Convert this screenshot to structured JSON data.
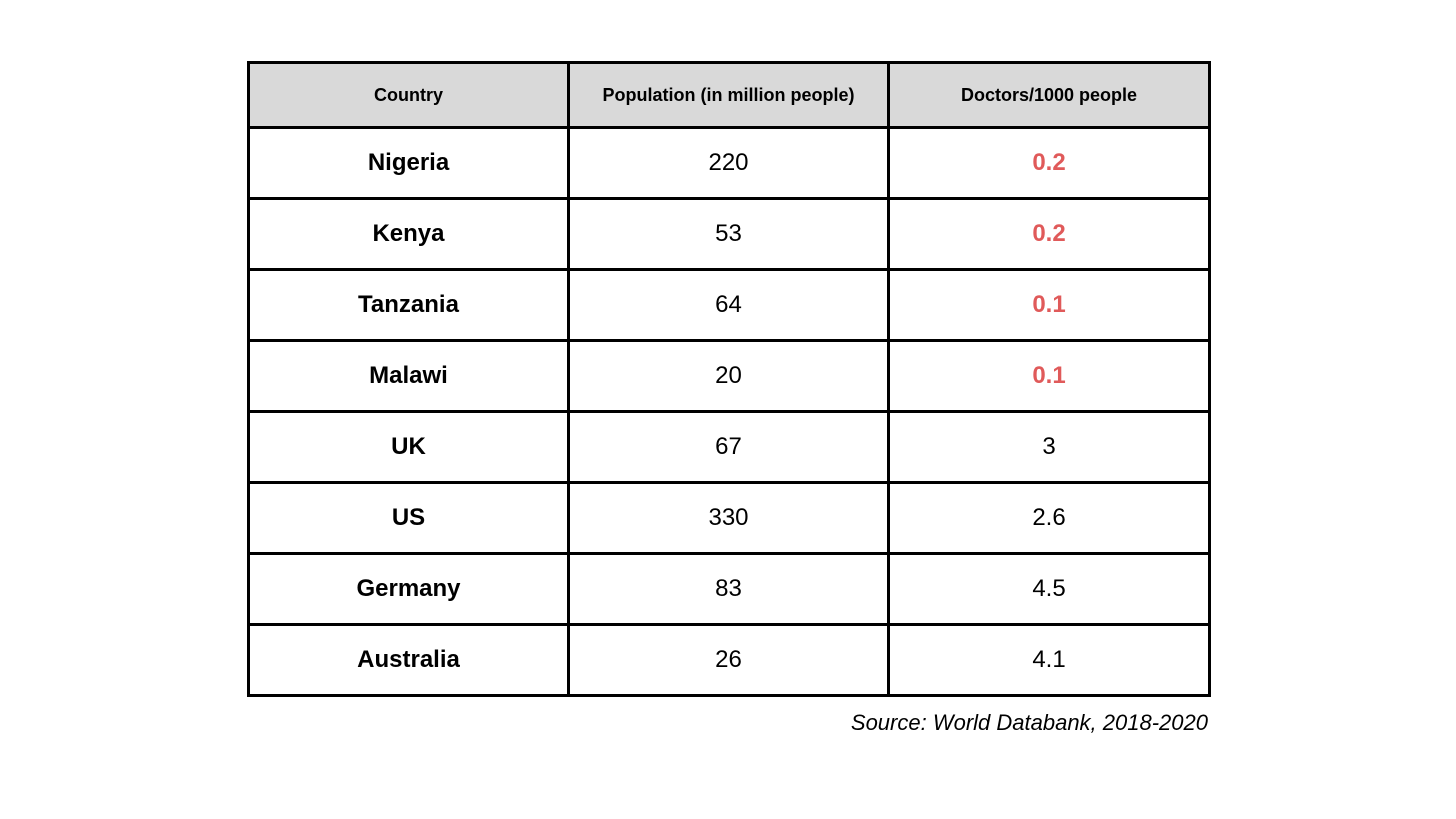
{
  "table": {
    "headers": [
      "Country",
      "Population (in million people)",
      "Doctors/1000 people"
    ],
    "rows": [
      {
        "country": "Nigeria",
        "population": "220",
        "doctors": "0.2",
        "highlight": true
      },
      {
        "country": "Kenya",
        "population": "53",
        "doctors": "0.2",
        "highlight": true
      },
      {
        "country": "Tanzania",
        "population": "64",
        "doctors": "0.1",
        "highlight": true
      },
      {
        "country": "Malawi",
        "population": "20",
        "doctors": "0.1",
        "highlight": true
      },
      {
        "country": "UK",
        "population": "67",
        "doctors": "3",
        "highlight": false
      },
      {
        "country": "US",
        "population": "330",
        "doctors": "2.6",
        "highlight": false
      },
      {
        "country": "Germany",
        "population": "83",
        "doctors": "4.5",
        "highlight": false
      },
      {
        "country": "Australia",
        "population": "26",
        "doctors": "4.1",
        "highlight": false
      }
    ]
  },
  "source": "Source: World Databank, 2018-2020",
  "colors": {
    "header_bg": "#d9d9d9",
    "highlight": "#e05a5a",
    "border": "#000000"
  }
}
